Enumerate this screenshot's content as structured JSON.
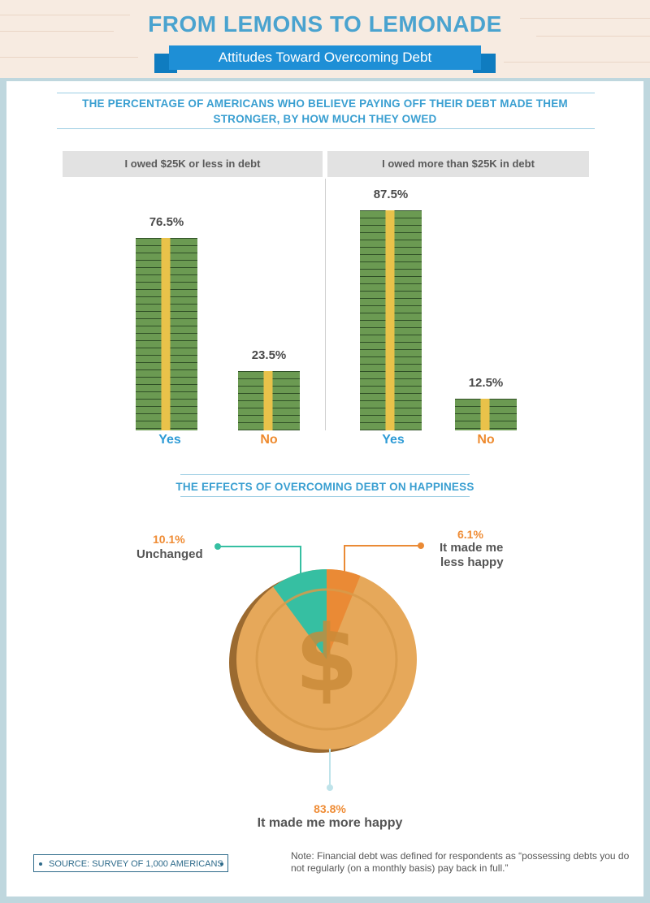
{
  "header": {
    "title": "FROM LEMONS TO LEMONADE",
    "subtitle": "Attitudes Toward Overcoming Debt"
  },
  "colors": {
    "bar_green": "#6b9a52",
    "bar_stripe": "#e9c24a",
    "yes": "#2e9bd6",
    "no": "#ee8a2e",
    "unchanged": "#36bfa2",
    "less_happy": "#ea8a35",
    "coin": "#e6a85a"
  },
  "chart_data": [
    {
      "type": "bar",
      "title": "THE PERCENTAGE OF AMERICANS WHO BELIEVE PAYING OFF THEIR DEBT MADE THEM STRONGER, BY HOW MUCH THEY OWED",
      "categories": [
        "Yes",
        "No"
      ],
      "groups": [
        "I owed $25K or less in debt",
        "I owed more than $25K in debt"
      ],
      "series": [
        {
          "name": "I owed $25K or less in debt",
          "values": [
            76.5,
            23.5
          ],
          "labels": [
            "76.5%",
            "23.5%"
          ]
        },
        {
          "name": "I owed more than $25K in debt",
          "values": [
            87.5,
            12.5
          ],
          "labels": [
            "87.5%",
            "12.5%"
          ]
        }
      ],
      "ylim": [
        0,
        100
      ]
    },
    {
      "type": "pie",
      "title": "THE EFFECTS OF OVERCOMING DEBT ON HAPPINESS",
      "slices": [
        {
          "label": "It made me less happy",
          "value": 6.1,
          "pct": "6.1%"
        },
        {
          "label": "It made me more happy",
          "value": 83.8,
          "pct": "83.8%"
        },
        {
          "label": "Unchanged",
          "value": 10.1,
          "pct": "10.1%"
        }
      ]
    }
  ],
  "labels": {
    "less_happy_line1": "It made me",
    "less_happy_line2": "less happy"
  },
  "footer": {
    "source": "SOURCE: SURVEY OF 1,000 AMERICANS",
    "note": "Note: Financial debt was defined for respondents as “possessing debts you do not regularly (on a monthly basis) pay back in full.”"
  }
}
